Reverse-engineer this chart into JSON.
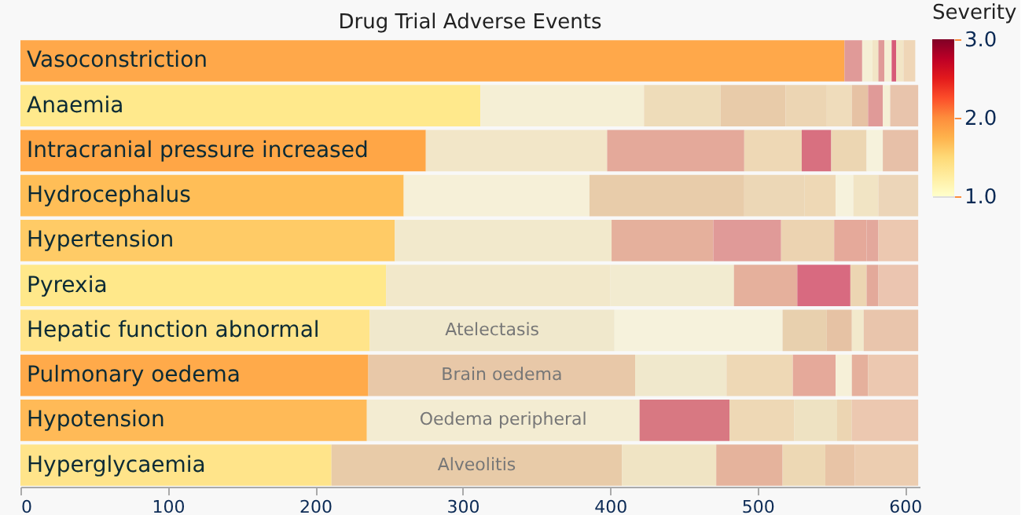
{
  "chart_data": {
    "type": "bar",
    "orientation": "horizontal",
    "stacked": true,
    "title": "Drug Trial Adverse Events",
    "categories": [
      "Vasoconstriction",
      "Anaemia",
      "Intracranial pressure increased",
      "Hydrocephalus",
      "Hypertension",
      "Pyrexia",
      "Hepatic function abnormal",
      "Pulmonary oedema",
      "Hypotension",
      "Hyperglycaemia"
    ],
    "series": [
      {
        "values": [
          559,
          312,
          275,
          260,
          254,
          248,
          237,
          236,
          235,
          211
        ],
        "colors": [
          "#ffa84a",
          "#ffe98c",
          "#ffa646",
          "#ffbe57",
          "#ffcb66",
          "#ffe88a",
          "#ffe48a",
          "#ffaa4a",
          "#ffba57",
          "#ffe48a"
        ]
      },
      {
        "values": [
          12,
          111,
          123,
          126,
          147,
          152,
          166,
          181,
          185,
          197
        ],
        "colors": [
          "#e09a98",
          "#f5efd5",
          "#f2e6c8",
          "#f6f0d8",
          "#f2e9cc",
          "#f2e8ca",
          "#f0e8cc",
          "#e8c8a8",
          "#f3ecd2",
          "#e8cba8"
        ],
        "value_labels": [
          null,
          null,
          null,
          null,
          null,
          null,
          "Atelectasis",
          "Brain oedema",
          "Oedema peripheral",
          "Alveolitis"
        ]
      },
      {
        "values": [
          7,
          52,
          93,
          105,
          69,
          84,
          114,
          62,
          61,
          64
        ],
        "colors": [
          "#f5efd5",
          "#eedcb9",
          "#e4a99a",
          "#e8ccaa",
          "#e5b09c",
          "#f2ebd0",
          "#f6f2dc",
          "#f0e8cc",
          "#d87882",
          "#f0e4c4"
        ]
      },
      {
        "values": [
          4,
          44,
          39,
          41,
          46,
          43,
          30,
          45,
          44,
          45
        ],
        "colors": [
          "#f2e5c6",
          "#e8cba9",
          "#eed8b5",
          "#ecd7b6",
          "#e09a98",
          "#e5b09c",
          "#e8d0ae",
          "#eed8b5",
          "#eed8b5",
          "#e5b39c"
        ]
      },
      {
        "values": [
          4,
          28,
          20,
          21,
          36,
          36,
          17,
          29,
          29,
          29
        ],
        "colors": [
          "#e09a98",
          "#ecd5b3",
          "#d87080",
          "#eed8b5",
          "#ecd3b1",
          "#d86a80",
          "#e6c2a4",
          "#e5a99a",
          "#eee2c2",
          "#edd8b4"
        ]
      },
      {
        "values": [
          5,
          17,
          24,
          12,
          22,
          11,
          8,
          11,
          10,
          20
        ],
        "colors": [
          "#f5efd5",
          "#efdcbb",
          "#ecd6b2",
          "#f6f2dc",
          "#e5a99a",
          "#ecd5b2",
          "#f2e9cc",
          "#f6f0d8",
          "#ecd5b2",
          "#e8c4a6"
        ]
      },
      {
        "values": [
          3,
          11,
          11,
          17,
          8,
          8,
          37,
          11,
          45,
          43
        ],
        "colors": [
          "#d75a78",
          "#e6c2a4",
          "#f6f2dc",
          "#f1e4c4",
          "#e3a89c",
          "#e3a99a",
          "#e9c5ac",
          "#e5b09c",
          "#ecc8b0",
          "#eccdb0"
        ]
      },
      {
        "values": [
          5,
          10,
          24,
          27,
          27,
          27,
          null,
          34,
          null,
          null
        ],
        "colors": [
          "#f2e5c6",
          "#e09a98",
          "#e7c0a8",
          "#ecd5b8",
          "#ecc8b0",
          "#ebc5b0",
          null,
          "#ecc8b0",
          null,
          null
        ]
      },
      {
        "values": [
          8,
          5,
          null,
          null,
          null,
          null,
          null,
          null,
          null,
          null
        ],
        "colors": [
          "#efd6b7",
          "#f5efd5",
          null,
          null,
          null,
          null,
          null,
          null,
          null,
          null
        ]
      },
      {
        "values": [
          null,
          19,
          null,
          null,
          null,
          null,
          null,
          null,
          null,
          null
        ],
        "colors": [
          null,
          "#e8c4ac",
          null,
          null,
          null,
          null,
          null,
          null,
          null,
          null
        ]
      }
    ],
    "xlim": [
      0,
      610
    ],
    "xticks": [
      0,
      100,
      200,
      300,
      400,
      500,
      600
    ],
    "tick_labels": "x",
    "legend": false,
    "clabel": "Severity",
    "clim": [
      1.0,
      3.0
    ],
    "cticks": [
      {
        "value": 1.0,
        "label": "1.0"
      },
      {
        "value": 2.0,
        "label": "2.0"
      },
      {
        "value": 3.0,
        "label": "3.0"
      }
    ]
  }
}
